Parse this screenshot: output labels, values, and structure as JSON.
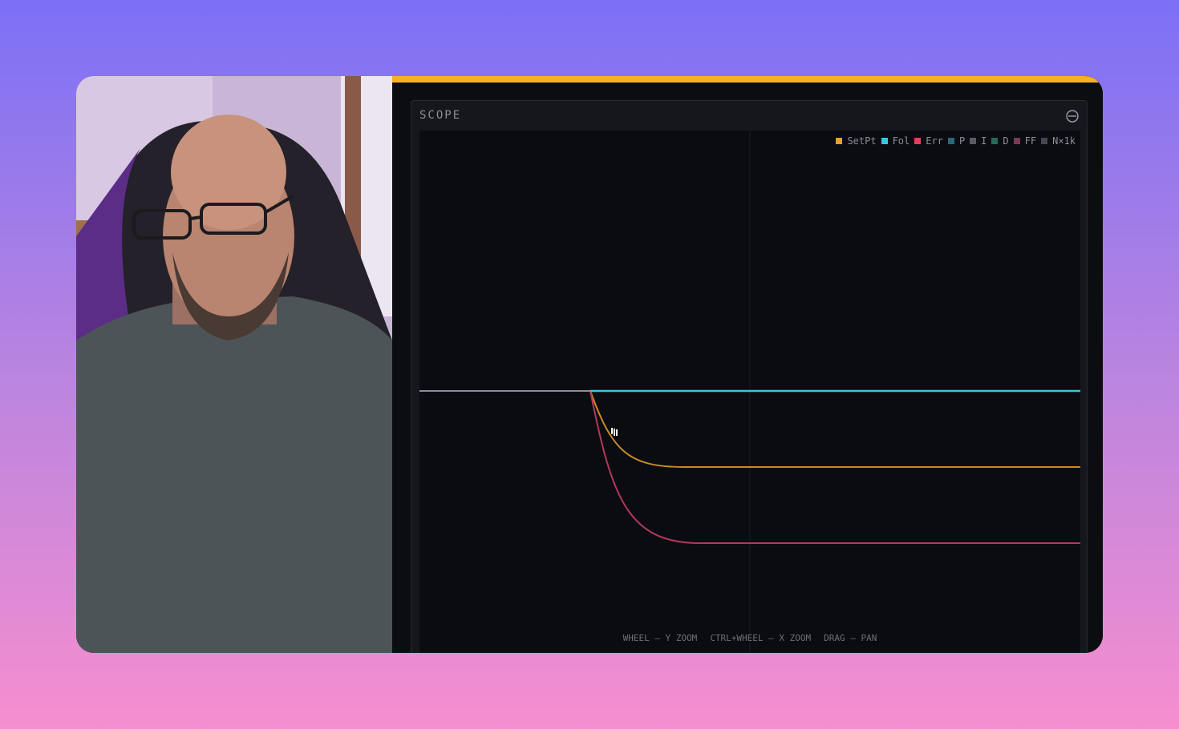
{
  "scope": {
    "title": "SCOPE",
    "legend": [
      {
        "name": "SetPt",
        "color": "#e8a030"
      },
      {
        "name": "Fol",
        "color": "#3cc4e4"
      },
      {
        "name": "Err",
        "color": "#e0405e"
      },
      {
        "name": "P",
        "color": "#2a6878"
      },
      {
        "name": "I",
        "color": "#5a5a66"
      },
      {
        "name": "D",
        "color": "#2a6a58"
      },
      {
        "name": "FF",
        "color": "#7a3a52"
      },
      {
        "name": "N×1k",
        "color": "#464650"
      }
    ],
    "hints": [
      "WHEEL — Y ZOOM",
      "CTRL+WHEEL — X ZOOM",
      "DRAG — PAN"
    ]
  }
}
